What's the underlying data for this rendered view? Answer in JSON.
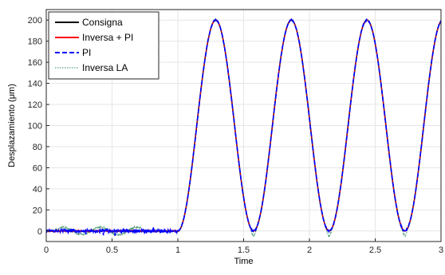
{
  "chart_data": {
    "type": "line",
    "xlabel": "Time",
    "ylabel": "Desplazamiento (μm)",
    "xlim": [
      0,
      3
    ],
    "ylim": [
      -10,
      210
    ],
    "xticks": [
      0,
      0.5,
      1,
      1.5,
      2,
      2.5,
      3
    ],
    "xtick_labels": [
      "0",
      "0.5",
      "1",
      "1.5",
      "2",
      "2.5",
      "3"
    ],
    "yticks": [
      0,
      20,
      40,
      60,
      80,
      100,
      120,
      140,
      160,
      180,
      200
    ],
    "ytick_labels": [
      "0",
      "20",
      "40",
      "60",
      "80",
      "100",
      "120",
      "140",
      "160",
      "180",
      "200"
    ],
    "grid": true,
    "legend_position": "top-left",
    "signal": {
      "start_time": 1.0,
      "period": 0.575,
      "amplitude_peak": 200,
      "baseline": 0
    },
    "series": [
      {
        "name": "Consigna",
        "color": "#000000",
        "style": "solid"
      },
      {
        "name": "Inversa + PI",
        "color": "#ff0000",
        "style": "solid"
      },
      {
        "name": "PI",
        "color": "#0000ff",
        "style": "dashed"
      },
      {
        "name": "Inversa LA",
        "color": "#2e8b57",
        "style": "dotted"
      }
    ]
  }
}
